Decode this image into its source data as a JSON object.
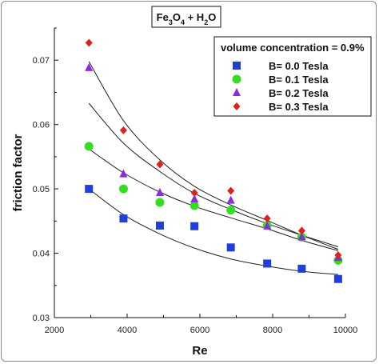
{
  "chart_data": {
    "type": "scatter",
    "title_parts": [
      "Fe",
      "3",
      "O",
      "4",
      " + H",
      "2",
      "O"
    ],
    "xlabel": "Re",
    "ylabel": "friction factor",
    "xlim": [
      2000,
      10000
    ],
    "ylim": [
      0.03,
      0.075
    ],
    "xticks": [
      2000,
      4000,
      6000,
      8000,
      10000
    ],
    "yticks": [
      0.03,
      0.04,
      0.05,
      0.06,
      0.07
    ],
    "ytick_labels": [
      "0.03",
      "0.04",
      "0.05",
      "0.06",
      "0.07"
    ],
    "legend_title": "volume concentration = 0.9%",
    "legend_position": "top-right",
    "x": [
      2950,
      3900,
      4900,
      5850,
      6850,
      7850,
      8800,
      9800
    ],
    "series": [
      {
        "name": "B= 0.0 Tesla",
        "marker": "square",
        "color": "#1f3fd6",
        "values": [
          0.05,
          0.0454,
          0.0443,
          0.0442,
          0.0409,
          0.0384,
          0.0376,
          0.036
        ],
        "fit_values": [
          0.05,
          0.046,
          0.043,
          0.0408,
          0.0391,
          0.038,
          0.0372,
          0.0367
        ]
      },
      {
        "name": "B= 0.1 Tesla",
        "marker": "circle",
        "color": "#33dd22",
        "values": [
          0.0566,
          0.05,
          0.0479,
          0.0474,
          0.0467,
          0.0443,
          0.0425,
          0.0389
        ],
        "fit_values": [
          0.0562,
          0.0525,
          0.0495,
          0.0473,
          0.0455,
          0.0438,
          0.042,
          0.0404
        ]
      },
      {
        "name": "B= 0.2 Tesla",
        "marker": "triangle",
        "color": "#8a2be2",
        "values": [
          0.0688,
          0.0523,
          0.0494,
          0.0484,
          0.0482,
          0.0442,
          0.0425,
          0.0393
        ],
        "fit_values": [
          0.0633,
          0.0571,
          0.0527,
          0.0493,
          0.0468,
          0.0446,
          0.0428,
          0.041
        ]
      },
      {
        "name": "B= 0.3 Tesla",
        "marker": "diamond",
        "color": "#e0201c",
        "values": [
          0.0727,
          0.0591,
          0.0538,
          0.0494,
          0.0497,
          0.0454,
          0.0435,
          0.0397
        ],
        "fit_values": [
          0.0698,
          0.0606,
          0.0545,
          0.0504,
          0.0475,
          0.0451,
          0.0428,
          0.0406
        ]
      }
    ]
  }
}
